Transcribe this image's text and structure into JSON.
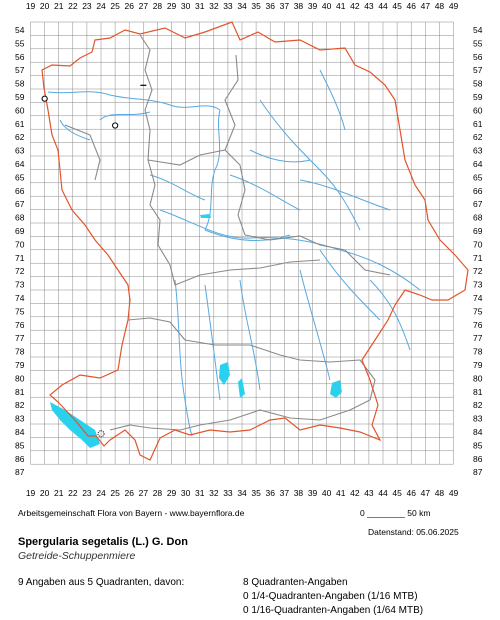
{
  "map": {
    "x_ticks": [
      "19",
      "20",
      "21",
      "22",
      "23",
      "24",
      "25",
      "26",
      "27",
      "28",
      "29",
      "30",
      "31",
      "32",
      "33",
      "34",
      "35",
      "36",
      "37",
      "38",
      "39",
      "40",
      "41",
      "42",
      "43",
      "44",
      "45",
      "46",
      "47",
      "48",
      "49"
    ],
    "y_ticks": [
      "54",
      "55",
      "56",
      "57",
      "58",
      "59",
      "60",
      "61",
      "62",
      "63",
      "64",
      "65",
      "66",
      "67",
      "68",
      "69",
      "70",
      "71",
      "72",
      "73",
      "74",
      "75",
      "76",
      "77",
      "78",
      "79",
      "80",
      "81",
      "82",
      "83",
      "84",
      "85",
      "86",
      "87"
    ],
    "colors": {
      "grid": "#888888",
      "border": "#e3542b",
      "districts": "#8a8a8a",
      "rivers": "#58a9df",
      "lakes": "#2ad1ec"
    },
    "records": [
      {
        "col": "20",
        "row": "59",
        "marker": "open-circle"
      },
      {
        "col": "25",
        "row": "61",
        "marker": "open-circle"
      },
      {
        "col": "27",
        "row": "58",
        "marker": "dash"
      },
      {
        "col": "24",
        "row": "84",
        "marker": "dotted-circle"
      }
    ]
  },
  "footer": {
    "credit": "Arbeitsgemeinschaft Flora von Bayern - www.bayernflora.de",
    "scale": "0 ________ 50 km",
    "date": "Datenstand: 05.06.2025",
    "species_name": "Spergularia segetalis (L.) G. Don",
    "common_name": "Getreide-Schuppenmiere",
    "summary": "9 Angaben aus 5 Quadranten, davon:",
    "counts": [
      "8 Quadranten-Angaben",
      "0 1/4-Quadranten-Angaben (1/16 MTB)",
      "0 1/16-Quadranten-Angaben (1/64 MTB)"
    ]
  }
}
